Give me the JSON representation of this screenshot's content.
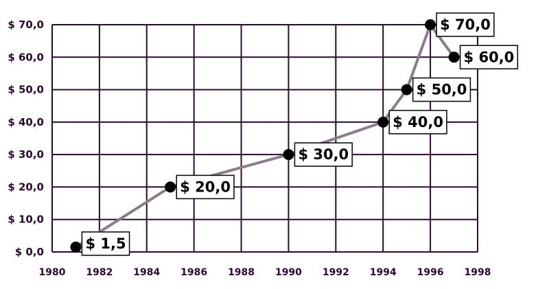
{
  "chart_data": {
    "type": "line",
    "title": "",
    "xlabel": "",
    "ylabel": "",
    "x_ticks": [
      "1980",
      "1982",
      "1984",
      "1986",
      "1988",
      "1990",
      "1992",
      "1994",
      "1996",
      "1998"
    ],
    "y_ticks": [
      "$ 0,0",
      "$ 10,0",
      "$ 20,0",
      "$ 30,0",
      "$ 40,0",
      "$ 50,0",
      "$ 60,0",
      "$ 70,0"
    ],
    "xlim": [
      1980,
      1998
    ],
    "ylim": [
      0,
      70
    ],
    "grid": true,
    "series": [
      {
        "x": [
          1981,
          1985,
          1990,
          1994,
          1995,
          1996,
          1997
        ],
        "values": [
          1.5,
          20,
          30,
          40,
          50,
          70,
          60
        ],
        "labels": [
          "$ 1,5",
          "$ 20,0",
          "$ 30,0",
          "$ 40,0",
          "$ 50,0",
          "$ 70,0",
          "$ 60,0"
        ]
      }
    ],
    "colors": {
      "line": "#8a7d8a",
      "grid": "#2a0a2e",
      "point": "#000000"
    }
  }
}
